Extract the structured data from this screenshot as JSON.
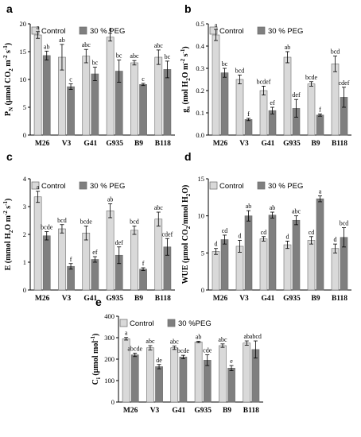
{
  "colors": {
    "control": "#d9d9d9",
    "peg": "#7f7f7f",
    "stroke": "#6a6a6a"
  },
  "chart_data": [
    {
      "type": "bar",
      "letter": "a",
      "ylabel_main": "P",
      "ylabel_sub": "N",
      "ylabel_rest": " (µmol CO",
      "ylabel_sub2": "2",
      "ylabel_end": " m",
      "ylabel_sup1": "-2",
      "ylabel_end2": " s",
      "ylabel_sup2": "-1",
      "ylabel_close": ")",
      "yticks": [
        "0",
        "5",
        "10",
        "15",
        "20"
      ],
      "ylim": [
        0,
        20
      ],
      "categories": [
        "M26",
        "V3",
        "G41",
        "G935",
        "B9",
        "B118"
      ],
      "series": [
        {
          "name": "Control",
          "values": [
            18.0,
            14.0,
            14.2,
            17.6,
            13.0,
            14.0
          ],
          "errors": [
            0.6,
            2.3,
            1.2,
            0.7,
            0.4,
            1.3
          ],
          "letters": [
            "a",
            "ab",
            "abc",
            "a",
            "abc",
            "abc"
          ]
        },
        {
          "name": "30 % PEG",
          "values": [
            14.3,
            8.7,
            11.0,
            11.5,
            9.1,
            11.8
          ],
          "errors": [
            0.8,
            0.5,
            1.2,
            2.0,
            0.2,
            1.5
          ],
          "letters": [
            "ab",
            "c",
            "bc",
            "bc",
            "c",
            "bc"
          ]
        }
      ]
    },
    {
      "type": "bar",
      "letter": "b",
      "ylabel_main": "g",
      "ylabel_sub": "s",
      "ylabel_rest": " (mol H",
      "ylabel_sub2": "2",
      "ylabel_end": "O m",
      "ylabel_sup1": "-2",
      "ylabel_end2": " s",
      "ylabel_sup2": "-1",
      "ylabel_close": ")",
      "yticks": [
        "0.0",
        "0.1",
        "0.2",
        "0.3",
        "0.4",
        "0.5"
      ],
      "ylim": [
        0,
        0.5
      ],
      "categories": [
        "M26",
        "V3",
        "G41",
        "G935",
        "B9",
        "B118"
      ],
      "series": [
        {
          "name": "Control",
          "values": [
            0.45,
            0.25,
            0.2,
            0.35,
            0.23,
            0.32
          ],
          "errors": [
            0.025,
            0.02,
            0.02,
            0.025,
            0.01,
            0.035
          ],
          "letters": [
            "a",
            "bcd",
            "bcdef",
            "ab",
            "bcde",
            "bcd"
          ]
        },
        {
          "name": "30 % PEG",
          "values": [
            0.28,
            0.07,
            0.11,
            0.12,
            0.09,
            0.17
          ],
          "errors": [
            0.02,
            0.005,
            0.015,
            0.04,
            0.005,
            0.045
          ],
          "letters": [
            "bc",
            "f",
            "ef",
            "def",
            "f",
            "cdef"
          ]
        }
      ]
    },
    {
      "type": "bar",
      "letter": "c",
      "ylabel_main": "E",
      "ylabel_sub": "",
      "ylabel_rest": " (mmol H",
      "ylabel_sub2": "2",
      "ylabel_end": "O m",
      "ylabel_sup1": "-2",
      "ylabel_end2": " s",
      "ylabel_sup2": "-1",
      "ylabel_close": ")",
      "yticks": [
        "0",
        "1",
        "2",
        "3",
        "4"
      ],
      "ylim": [
        0,
        4
      ],
      "categories": [
        "M26",
        "V3",
        "G41",
        "G935",
        "B9",
        "B118"
      ],
      "series": [
        {
          "name": "Control",
          "values": [
            3.35,
            2.2,
            2.05,
            2.85,
            2.15,
            2.55
          ],
          "errors": [
            0.2,
            0.15,
            0.25,
            0.25,
            0.15,
            0.25
          ],
          "letters": [
            "a",
            "bcd",
            "bcde",
            "ab",
            "bcd",
            "abc"
          ]
        },
        {
          "name": "30 % PEG",
          "values": [
            1.95,
            0.85,
            1.1,
            1.25,
            0.75,
            1.55
          ],
          "errors": [
            0.15,
            0.1,
            0.1,
            0.3,
            0.05,
            0.3
          ],
          "letters": [
            "bcde",
            "f",
            "ef",
            "def",
            "f",
            "cdef"
          ]
        }
      ]
    },
    {
      "type": "bar",
      "letter": "d",
      "ylabel_main": "WUE",
      "ylabel_sub": "",
      "ylabel_rest": " (µmol CO",
      "ylabel_sub2": "2",
      "ylabel_end": "/mmol H",
      "ylabel_sup1": "",
      "ylabel_end2": "",
      "ylabel_sup2": "",
      "ylabel_close": "O)",
      "ylabel_sub3": "2",
      "yticks": [
        "0",
        "5",
        "10",
        "15"
      ],
      "ylim": [
        0,
        15
      ],
      "categories": [
        "M26",
        "V3",
        "G41",
        "G935",
        "B9",
        "B118"
      ],
      "series": [
        {
          "name": "Control",
          "values": [
            5.2,
            5.9,
            6.9,
            6.1,
            6.7,
            5.6
          ],
          "errors": [
            0.4,
            0.8,
            0.3,
            0.5,
            0.5,
            0.6
          ],
          "letters": [
            "d",
            "d",
            "cd",
            "d",
            "cd",
            "d"
          ]
        },
        {
          "name": "30 % PEG",
          "values": [
            6.8,
            10.0,
            10.1,
            9.4,
            12.3,
            7.1
          ],
          "errors": [
            0.6,
            0.7,
            0.4,
            0.6,
            0.4,
            1.3
          ],
          "letters": [
            "cd",
            "ab",
            "ab",
            "abc",
            "a",
            "bcd"
          ]
        }
      ]
    },
    {
      "type": "bar",
      "letter": "e",
      "ylabel_main": "C",
      "ylabel_sub": "i",
      "ylabel_rest": " (µmol mol",
      "ylabel_sub2": "",
      "ylabel_end": "",
      "ylabel_sup1": "-1",
      "ylabel_end2": "",
      "ylabel_sup2": "",
      "ylabel_close": ")",
      "yticks": [
        "0",
        "100",
        "200",
        "300",
        "400"
      ],
      "ylim": [
        0,
        400
      ],
      "categories": [
        "M26",
        "V3",
        "G41",
        "G935",
        "B9",
        "B118"
      ],
      "series": [
        {
          "name": "Control",
          "values": [
            295,
            253,
            253,
            280,
            263,
            275
          ],
          "errors": [
            6,
            10,
            8,
            3,
            8,
            10
          ],
          "letters": [
            "a",
            "abc",
            "abc",
            "ab",
            "abc",
            "ab"
          ]
        },
        {
          "name": "30 %PEG",
          "values": [
            220,
            165,
            210,
            195,
            158,
            245
          ],
          "errors": [
            8,
            10,
            8,
            25,
            12,
            40
          ],
          "letters": [
            "abcde",
            "de",
            "bcde",
            "cde",
            "e",
            "abcd"
          ]
        }
      ]
    }
  ]
}
